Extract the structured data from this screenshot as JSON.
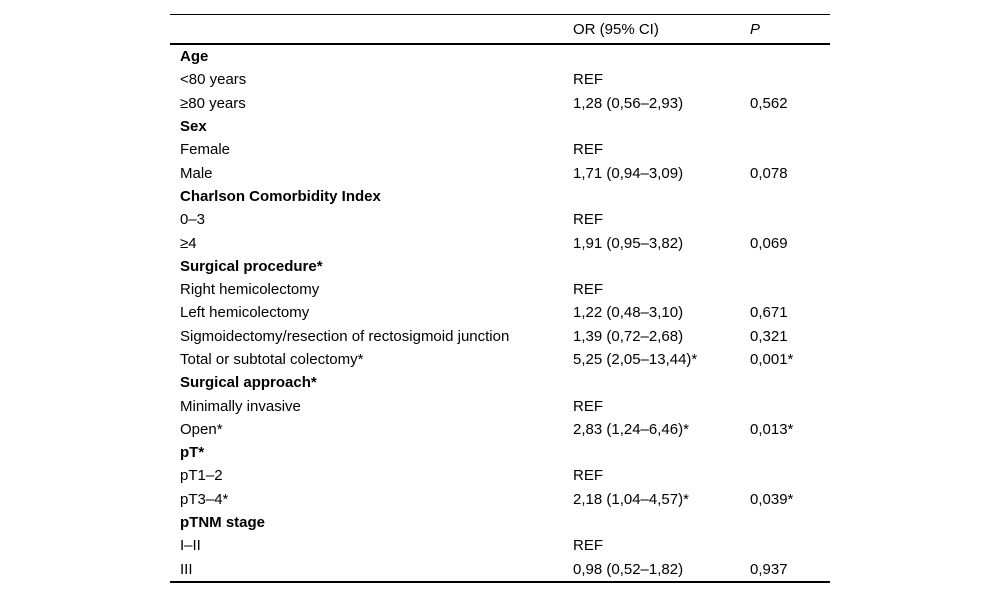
{
  "page": {
    "background_color": "#ffffff",
    "text_color": "#000000",
    "rule_color": "#000000"
  },
  "table": {
    "header": {
      "label": "",
      "or": "OR (95% CI)",
      "p": "P"
    },
    "rows": [
      {
        "label": "Age",
        "bold": true,
        "or": "",
        "p": ""
      },
      {
        "label": "<80 years",
        "bold": false,
        "or": "REF",
        "p": ""
      },
      {
        "label": "≥80 years",
        "bold": false,
        "or": "1,28 (0,56–2,93)",
        "p": "0,562"
      },
      {
        "label": "Sex",
        "bold": true,
        "or": "",
        "p": ""
      },
      {
        "label": "Female",
        "bold": false,
        "or": "REF",
        "p": ""
      },
      {
        "label": "Male",
        "bold": false,
        "or": "1,71 (0,94–3,09)",
        "p": "0,078"
      },
      {
        "label": "Charlson Comorbidity Index",
        "bold": true,
        "or": "",
        "p": ""
      },
      {
        "label": "0–3",
        "bold": false,
        "or": "REF",
        "p": ""
      },
      {
        "label": "≥4",
        "bold": false,
        "or": "1,91 (0,95–3,82)",
        "p": "0,069"
      },
      {
        "label": "Surgical procedure*",
        "bold": true,
        "or": "",
        "p": ""
      },
      {
        "label": "Right hemicolectomy",
        "bold": false,
        "or": "REF",
        "p": ""
      },
      {
        "label": "Left hemicolectomy",
        "bold": false,
        "or": "1,22 (0,48–3,10)",
        "p": "0,671"
      },
      {
        "label": "Sigmoidectomy/resection of rectosigmoid junction",
        "bold": false,
        "or": "1,39 (0,72–2,68)",
        "p": "0,321"
      },
      {
        "label": "Total or subtotal colectomy*",
        "bold": false,
        "or": "5,25 (2,05–13,44)*",
        "p": "0,001*"
      },
      {
        "label": "Surgical approach*",
        "bold": true,
        "or": "",
        "p": ""
      },
      {
        "label": "Minimally invasive",
        "bold": false,
        "or": "REF",
        "p": ""
      },
      {
        "label": "Open*",
        "bold": false,
        "or": "2,83 (1,24–6,46)*",
        "p": "0,013*"
      },
      {
        "label": "pT*",
        "bold": true,
        "or": "",
        "p": ""
      },
      {
        "label": "pT1–2",
        "bold": false,
        "or": "REF",
        "p": ""
      },
      {
        "label": "pT3–4*",
        "bold": false,
        "or": "2,18 (1,04–4,57)*",
        "p": "0,039*"
      },
      {
        "label": "pTNM stage",
        "bold": true,
        "or": "",
        "p": ""
      },
      {
        "label": "I–II",
        "bold": false,
        "or": "REF",
        "p": ""
      },
      {
        "label": "III",
        "bold": false,
        "or": "0,98 (0,52–1,82)",
        "p": "0,937"
      }
    ]
  }
}
